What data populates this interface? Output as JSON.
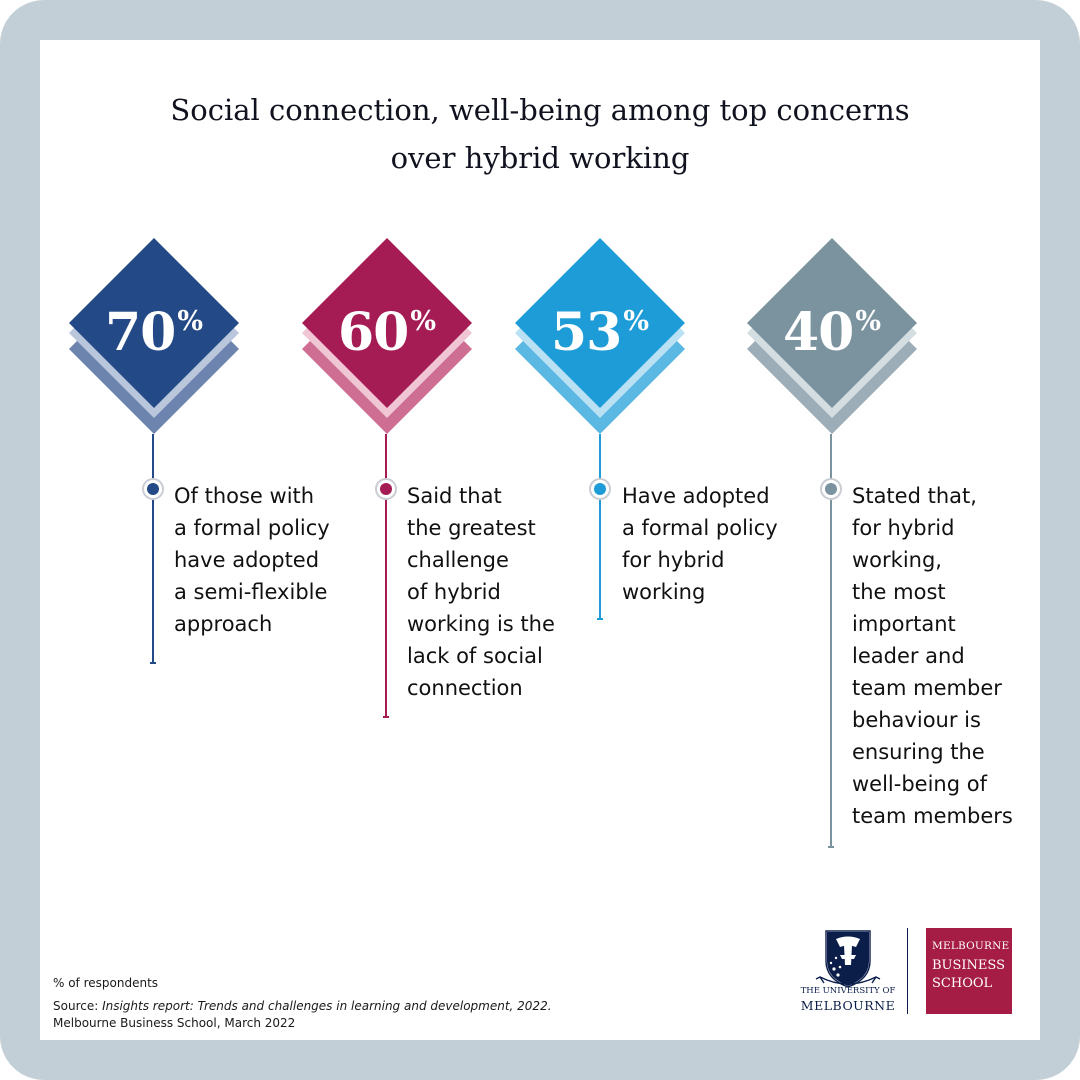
{
  "title": {
    "line1": "Social connection, well-being among top concerns",
    "line2": "over hybrid working"
  },
  "stats": [
    {
      "value": "70",
      "unit": "%",
      "colors": {
        "main": "#234a86",
        "light": "#b9c6dc",
        "back": "#6c84ae"
      },
      "description": [
        "Of those with",
        "a formal policy",
        "have adopted",
        "a semi-flexible",
        "approach"
      ]
    },
    {
      "value": "60",
      "unit": "%",
      "colors": {
        "main": "#a51c55",
        "light": "#f0c5d4",
        "back": "#cf6e93"
      },
      "description": [
        "Said that",
        "the greatest",
        "challenge",
        "of hybrid",
        "working is the",
        "lack of social",
        "connection"
      ]
    },
    {
      "value": "53",
      "unit": "%",
      "colors": {
        "main": "#1e9cd7",
        "light": "#b9e1f3",
        "back": "#5bb8e3"
      },
      "description": [
        "Have adopted",
        "a formal policy",
        "for hybrid",
        "working"
      ]
    },
    {
      "value": "40",
      "unit": "%",
      "colors": {
        "main": "#7b929f",
        "light": "#d3dde2",
        "back": "#9cadb7"
      },
      "description": [
        "Stated that,",
        "for hybrid",
        "working,",
        "the most",
        "important",
        "leader and",
        "team member",
        "behaviour is",
        "ensuring the",
        "well-being of",
        "team members"
      ]
    }
  ],
  "footnote": "% of respondents",
  "source": {
    "label": "Source: ",
    "title": "Insights report: Trends and challenges in learning and development, 2022.",
    "publisher": "Melbourne Business School, March 2022"
  },
  "logos": {
    "uom_line1": "THE UNIVERSITY OF",
    "uom_line2": "MELBOURNE",
    "uom_color": "#0b1e4a",
    "mbs_line1": "MELBOURNE",
    "mbs_line2": "BUSINESS",
    "mbs_line3": "SCHOOL",
    "mbs_color": "#a51c45"
  }
}
